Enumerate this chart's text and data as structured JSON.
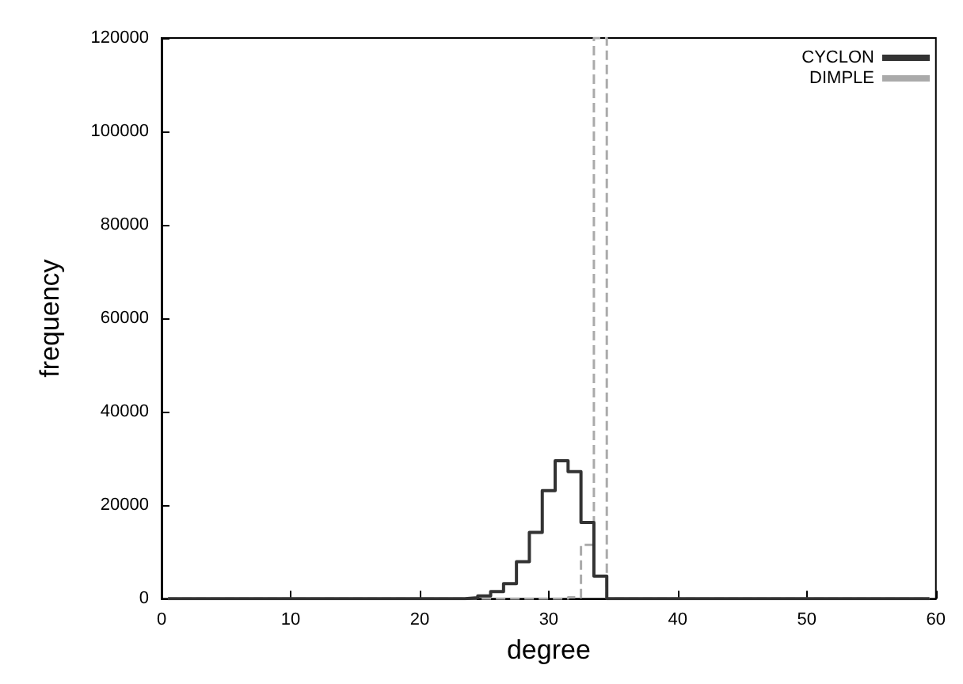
{
  "chart_data": {
    "type": "histogram",
    "xlabel": "degree",
    "ylabel": "frequency",
    "bins": [
      0.5,
      1.5,
      2.5,
      3.5,
      4.5,
      5.5,
      6.5,
      7.5,
      8.5,
      9.5,
      10.5,
      11.5,
      12.5,
      13.5,
      14.5,
      15.5,
      16.5,
      17.5,
      18.5,
      19.5,
      20.5,
      21.5,
      22.5,
      23.5,
      24.5,
      25.5,
      26.5,
      27.5,
      28.5,
      29.5,
      30.5,
      31.5,
      32.5,
      33.5,
      34.5,
      35.5,
      36.5,
      37.5,
      38.5,
      39.5,
      40.5,
      41.5,
      42.5,
      43.5,
      44.5,
      45.5,
      46.5,
      47.5,
      48.5,
      49.5,
      50.5,
      51.5,
      52.5,
      53.5,
      54.5,
      55.5,
      56.5,
      57.5,
      58.5,
      59.5
    ],
    "series": [
      {
        "name": "CYCLON",
        "color": "#333333",
        "line_style": "solid",
        "values": [
          0,
          0,
          0,
          0,
          0,
          0,
          0,
          0,
          0,
          0,
          0,
          0,
          0,
          0,
          0,
          0,
          0,
          0,
          0,
          0,
          0,
          0,
          0,
          200,
          600,
          1500,
          3200,
          7900,
          14200,
          23100,
          29500,
          27200,
          16300,
          4800,
          0,
          0,
          0,
          0,
          0,
          0,
          0,
          0,
          0,
          0,
          0,
          0,
          0,
          0,
          0,
          0,
          0,
          0,
          0,
          0,
          0,
          0,
          0,
          0,
          0
        ]
      },
      {
        "name": "DIMPLE",
        "color": "#aaaaaa",
        "line_style": "dashed",
        "values": [
          0,
          0,
          0,
          0,
          0,
          0,
          0,
          0,
          0,
          0,
          0,
          0,
          0,
          0,
          0,
          0,
          0,
          0,
          0,
          0,
          0,
          0,
          0,
          0,
          0,
          0,
          0,
          0,
          0,
          0,
          0,
          300,
          11500,
          120000,
          0,
          0,
          0,
          0,
          0,
          0,
          0,
          0,
          0,
          0,
          0,
          0,
          0,
          0,
          0,
          0,
          0,
          0,
          0,
          0,
          0,
          0,
          0,
          0,
          0
        ]
      }
    ],
    "xlim": [
      0,
      60
    ],
    "xticks": [
      0,
      10,
      20,
      30,
      40,
      50,
      60
    ],
    "ylim": [
      0,
      120000
    ],
    "yticks": [
      0,
      20000,
      40000,
      60000,
      80000,
      100000,
      120000
    ],
    "grid": false,
    "legend": "top right",
    "marker": "none"
  }
}
